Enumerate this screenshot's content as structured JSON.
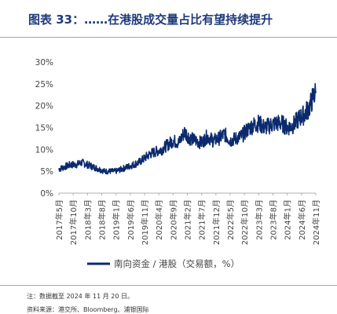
{
  "header": {
    "title": "图表 33：……在港股成交量占比有望持续提升"
  },
  "footer": {
    "note": "注：数据截至 2024 年 11 月 20 日。",
    "source": "资料来源：港交所、Bloomberg、浦银国际"
  },
  "colors": {
    "series": "#0b2a6e",
    "axis": "#b0b0b0",
    "text": "#444444",
    "accent": "#1f3a7a"
  },
  "chart_data": {
    "type": "line",
    "title": "",
    "xlabel": "",
    "ylabel": "",
    "ylim": [
      0,
      30
    ],
    "yticks": [
      "0%",
      "5%",
      "10%",
      "15%",
      "20%",
      "25%",
      "30%"
    ],
    "ytick_values": [
      0,
      5,
      10,
      15,
      20,
      25,
      30
    ],
    "xticks": [
      "2017年5月",
      "2017年10月",
      "2018年3月",
      "2018年8月",
      "2019年1月",
      "2019年6月",
      "2019年11月",
      "2020年4月",
      "2020年9月",
      "2021年2月",
      "2021年7月",
      "2021年12月",
      "2022年5月",
      "2022年10月",
      "2023年3月",
      "2023年8月",
      "2024年1月",
      "2024年6月",
      "2024年11月"
    ],
    "grid": false,
    "legend_position": "bottom",
    "series": [
      {
        "name": "南向资金 / 港股（交易额，%）",
        "x": [
          "2017-05",
          "2017-07",
          "2017-09",
          "2017-11",
          "2018-01",
          "2018-03",
          "2018-05",
          "2018-07",
          "2018-09",
          "2018-11",
          "2019-01",
          "2019-03",
          "2019-05",
          "2019-07",
          "2019-09",
          "2019-11",
          "2020-01",
          "2020-03",
          "2020-05",
          "2020-07",
          "2020-09",
          "2020-11",
          "2021-01",
          "2021-03",
          "2021-05",
          "2021-07",
          "2021-09",
          "2021-11",
          "2022-01",
          "2022-03",
          "2022-05",
          "2022-07",
          "2022-09",
          "2022-11",
          "2023-01",
          "2023-03",
          "2023-05",
          "2023-07",
          "2023-09",
          "2023-11",
          "2024-01",
          "2024-03",
          "2024-05",
          "2024-07",
          "2024-09",
          "2024-10",
          "2024-11"
        ],
        "values": [
          5.5,
          6.0,
          6.5,
          6.5,
          7.0,
          6.5,
          6.0,
          5.5,
          5.0,
          5.0,
          5.0,
          5.5,
          6.0,
          6.5,
          7.0,
          8.0,
          9.0,
          9.5,
          10.0,
          11.0,
          12.0,
          11.5,
          14.0,
          12.5,
          12.0,
          11.5,
          13.0,
          12.0,
          12.5,
          13.5,
          12.0,
          12.5,
          13.0,
          14.5,
          15.5,
          16.0,
          15.0,
          15.5,
          16.0,
          16.0,
          15.0,
          15.5,
          17.0,
          18.0,
          20.0,
          22.0,
          23.0
        ]
      }
    ]
  }
}
